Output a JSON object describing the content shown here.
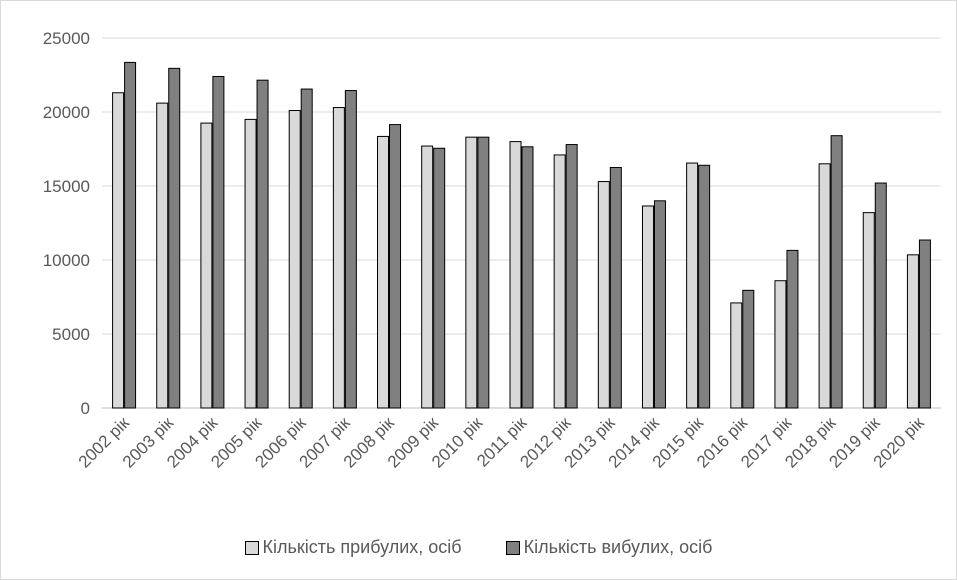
{
  "chart_data": {
    "type": "bar",
    "title": "",
    "xlabel": "",
    "ylabel": "",
    "ylim": [
      0,
      25000
    ],
    "yticks": [
      0,
      5000,
      10000,
      15000,
      20000,
      25000
    ],
    "grid": true,
    "legend_position": "bottom",
    "categories": [
      "2002 рік",
      "2003 рік",
      "2004 рік",
      "2005 рік",
      "2006 рік",
      "2007 рік",
      "2008 рік",
      "2009 рік",
      "2010 рік",
      "2011 рік",
      "2012 рік",
      "2013 рік",
      "2014 рік",
      "2015 рік",
      "2016 рік",
      "2017 рік",
      "2018 рік",
      "2019 рік",
      "2020 рік"
    ],
    "series": [
      {
        "name": "Кількість прибулих, осіб",
        "color": "#d9d9d9",
        "values": [
          21300,
          20600,
          19250,
          19500,
          20100,
          20300,
          18350,
          17700,
          18300,
          18000,
          17100,
          15300,
          13650,
          16550,
          7100,
          8600,
          16500,
          13200,
          10350
        ]
      },
      {
        "name": "Кількість вибулих, осіб",
        "color": "#808080",
        "values": [
          23350,
          22950,
          22400,
          22150,
          21550,
          21450,
          19150,
          17550,
          18300,
          17650,
          17800,
          16250,
          14000,
          16400,
          7950,
          10650,
          18400,
          15200,
          11350
        ]
      }
    ]
  }
}
